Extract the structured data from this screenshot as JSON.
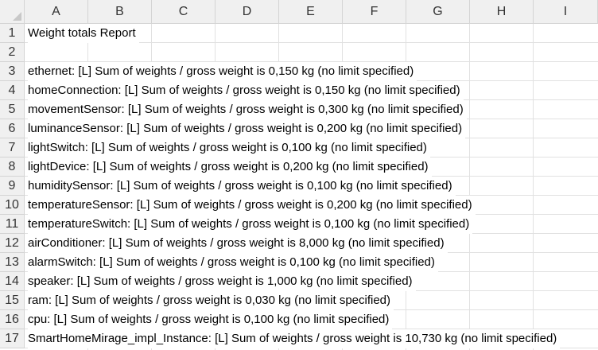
{
  "columns": [
    "A",
    "B",
    "C",
    "D",
    "E",
    "F",
    "G",
    "H",
    "I"
  ],
  "rows": [
    {
      "number": "1",
      "text": "Weight totals Report"
    },
    {
      "number": "2",
      "text": ""
    },
    {
      "number": "3",
      "text": "ethernet: [L] Sum of weights / gross weight is 0,150 kg (no limit specified)"
    },
    {
      "number": "4",
      "text": "homeConnection: [L] Sum of weights / gross weight is 0,150 kg (no limit specified)"
    },
    {
      "number": "5",
      "text": "movementSensor: [L] Sum of weights / gross weight is 0,300 kg (no limit specified)"
    },
    {
      "number": "6",
      "text": "luminanceSensor: [L] Sum of weights / gross weight is 0,200 kg (no limit specified)"
    },
    {
      "number": "7",
      "text": "lightSwitch: [L] Sum of weights / gross weight is 0,100 kg (no limit specified)"
    },
    {
      "number": "8",
      "text": "lightDevice: [L] Sum of weights / gross weight is 0,200 kg (no limit specified)"
    },
    {
      "number": "9",
      "text": "humiditySensor: [L] Sum of weights / gross weight is 0,100 kg (no limit specified)"
    },
    {
      "number": "10",
      "text": "temperatureSensor: [L] Sum of weights / gross weight is 0,200 kg (no limit specified)"
    },
    {
      "number": "11",
      "text": "temperatureSwitch: [L] Sum of weights / gross weight is 0,100 kg (no limit specified)"
    },
    {
      "number": "12",
      "text": "airConditioner: [L] Sum of weights / gross weight is 8,000 kg (no limit specified)"
    },
    {
      "number": "13",
      "text": "alarmSwitch: [L] Sum of weights / gross weight is 0,100 kg (no limit specified)"
    },
    {
      "number": "14",
      "text": "speaker: [L] Sum of weights / gross weight is 1,000 kg (no limit specified)"
    },
    {
      "number": "15",
      "text": "ram: [L] Sum of weights / gross weight is 0,030 kg (no limit specified)"
    },
    {
      "number": "16",
      "text": "cpu: [L] Sum of weights / gross weight is 0,100 kg (no limit specified)"
    },
    {
      "number": "17",
      "text": "SmartHomeMirage_impl_Instance: [L] Sum of weights / gross weight is 10,730 kg (no limit specified)"
    }
  ]
}
